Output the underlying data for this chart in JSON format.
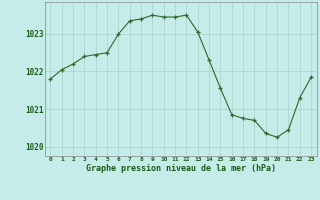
{
  "x": [
    0,
    1,
    2,
    3,
    4,
    5,
    6,
    7,
    8,
    9,
    10,
    11,
    12,
    13,
    14,
    15,
    16,
    17,
    18,
    19,
    20,
    21,
    22,
    23
  ],
  "y": [
    1021.8,
    1022.05,
    1022.2,
    1022.4,
    1022.45,
    1022.5,
    1023.0,
    1023.35,
    1023.4,
    1023.5,
    1023.45,
    1023.45,
    1023.5,
    1023.05,
    1022.3,
    1021.55,
    1020.85,
    1020.75,
    1020.7,
    1020.35,
    1020.25,
    1020.45,
    1021.3,
    1021.85
  ],
  "line_color": "#2d6a2d",
  "marker_color": "#2d6a2d",
  "bg_color": "#c5ece8",
  "grid_color": "#aacfcc",
  "axis_color": "#555555",
  "label_color": "#1a5c1a",
  "xlabel": "Graphe pression niveau de la mer (hPa)",
  "ylim": [
    1019.75,
    1023.85
  ],
  "yticks": [
    1020,
    1021,
    1022,
    1023
  ],
  "xticks": [
    0,
    1,
    2,
    3,
    4,
    5,
    6,
    7,
    8,
    9,
    10,
    11,
    12,
    13,
    14,
    15,
    16,
    17,
    18,
    19,
    20,
    21,
    22,
    23
  ],
  "xtick_labels": [
    "0",
    "1",
    "2",
    "3",
    "4",
    "5",
    "6",
    "7",
    "8",
    "9",
    "10",
    "11",
    "12",
    "13",
    "14",
    "15",
    "16",
    "17",
    "18",
    "19",
    "20",
    "21",
    "22",
    "23"
  ]
}
